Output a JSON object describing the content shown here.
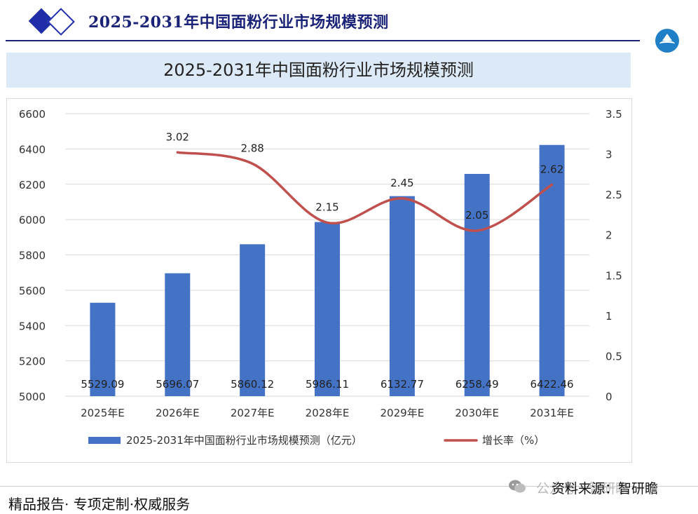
{
  "header": {
    "title": "2025-2031年中国面粉行业市场规模预测"
  },
  "chart_data": {
    "type": "bar",
    "title": "2025-2031年中国面粉行业市场规模预测",
    "categories": [
      "2025年E",
      "2026年E",
      "2027年E",
      "2028年E",
      "2029年E",
      "2030年E",
      "2031年E"
    ],
    "series": [
      {
        "name": "2025-2031年中国面粉行业市场规模预测（亿元）",
        "type": "bar",
        "axis": "left",
        "values": [
          5529.09,
          5696.07,
          5860.12,
          5986.11,
          6132.77,
          6258.49,
          6422.46
        ],
        "labels": [
          "5529.09",
          "5696.07",
          "5860.12",
          "5986.11",
          "6132.77",
          "6258.49",
          "6422.46"
        ],
        "color": "#4472c4"
      },
      {
        "name": "增长率（%）",
        "type": "line",
        "axis": "right",
        "values": [
          null,
          3.02,
          2.88,
          2.15,
          2.45,
          2.05,
          2.62
        ],
        "labels": [
          "",
          "3.02",
          "2.88",
          "2.15",
          "2.45",
          "2.05",
          "2.62"
        ],
        "color": "#c0504d"
      }
    ],
    "y_left": {
      "min": 5000,
      "max": 6600,
      "ticks": [
        "5000",
        "5200",
        "5400",
        "5600",
        "5800",
        "6000",
        "6200",
        "6400",
        "6600"
      ]
    },
    "y_right": {
      "min": 0,
      "max": 3.5,
      "ticks": [
        "0",
        "0.5",
        "1",
        "1.5",
        "2",
        "2.5",
        "3",
        "3.5"
      ]
    },
    "grid": true,
    "legend_position": "bottom"
  },
  "footer": {
    "left_text": "精品报告· 专项定制·权威服务",
    "source_text": "资料来源：智研瞻",
    "ghost_text": "公众号 · 智研瞻"
  },
  "colors": {
    "brand": "#1a2378",
    "title_band": "#dce9f6",
    "bar": "#4472c4",
    "line": "#c0504d"
  }
}
